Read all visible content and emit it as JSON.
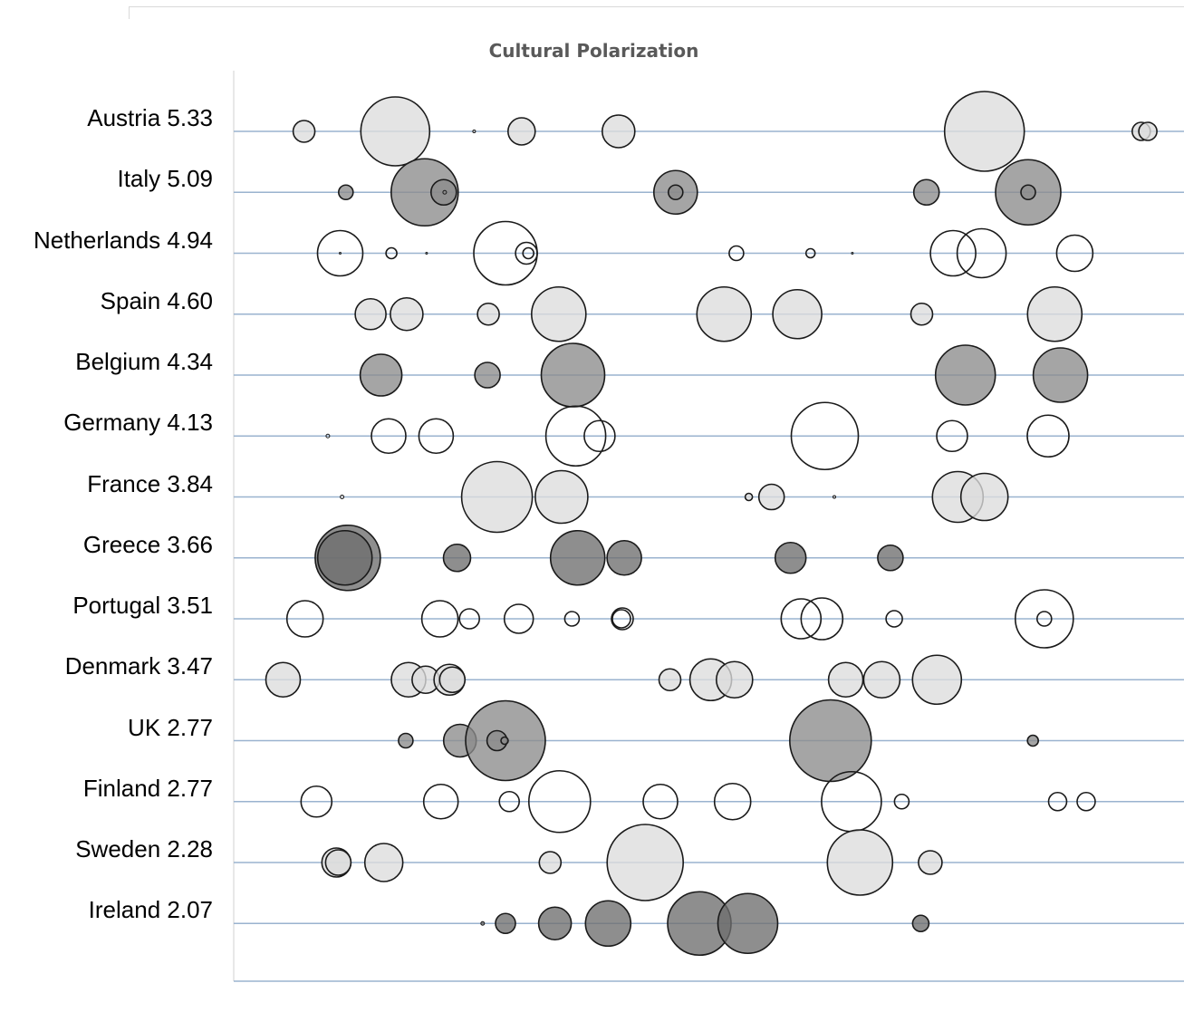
{
  "chart_data": {
    "type": "bubble-strip",
    "title": "Cultural Polarization",
    "xlabel": "",
    "ylabel": "",
    "grid": true,
    "legend": "none",
    "colors": {
      "light": "#dcdcdc",
      "medium": "#8c8c8c",
      "dark": "#6e6e6e",
      "none": "none",
      "axis": "#9ab3cf",
      "stroke": "#1a1a1a"
    },
    "rows": [
      {
        "country": "Austria",
        "score": "5.33",
        "label": "Austria 5.33",
        "fill": "light",
        "bubbles": [
          [
            0.074,
            12
          ],
          [
            0.17,
            38
          ],
          [
            0.253,
            1.5
          ],
          [
            0.303,
            15
          ],
          [
            0.405,
            18
          ],
          [
            0.79,
            44
          ],
          [
            0.955,
            10
          ],
          [
            0.962,
            10
          ]
        ]
      },
      {
        "country": "Italy",
        "score": "5.09",
        "label": "Italy 5.09",
        "fill": "medium",
        "bubbles": [
          [
            0.118,
            8
          ],
          [
            0.201,
            37
          ],
          [
            0.221,
            14
          ],
          [
            0.222,
            2
          ],
          [
            0.465,
            24
          ],
          [
            0.465,
            8
          ],
          [
            0.729,
            14
          ],
          [
            0.836,
            36
          ],
          [
            0.836,
            8
          ]
        ]
      },
      {
        "country": "Netherlands",
        "score": "4.94",
        "label": "Netherlands 4.94",
        "fill": "none",
        "bubbles": [
          [
            0.112,
            25
          ],
          [
            0.112,
            1
          ],
          [
            0.166,
            6
          ],
          [
            0.203,
            1
          ],
          [
            0.286,
            35
          ],
          [
            0.308,
            12
          ],
          [
            0.31,
            6
          ],
          [
            0.529,
            8
          ],
          [
            0.607,
            5
          ],
          [
            0.651,
            1
          ],
          [
            0.757,
            25
          ],
          [
            0.787,
            27
          ],
          [
            0.885,
            20
          ]
        ]
      },
      {
        "country": "Spain",
        "score": "4.60",
        "label": "Spain 4.60",
        "fill": "light",
        "bubbles": [
          [
            0.144,
            17
          ],
          [
            0.182,
            18
          ],
          [
            0.268,
            12
          ],
          [
            0.342,
            30
          ],
          [
            0.516,
            30
          ],
          [
            0.593,
            27
          ],
          [
            0.724,
            12
          ],
          [
            0.864,
            30
          ]
        ]
      },
      {
        "country": "Belgium",
        "score": "4.34",
        "label": "Belgium 4.34",
        "fill": "medium",
        "bubbles": [
          [
            0.155,
            23
          ],
          [
            0.267,
            14
          ],
          [
            0.357,
            35
          ],
          [
            0.77,
            33
          ],
          [
            0.87,
            30
          ]
        ]
      },
      {
        "country": "Germany",
        "score": "4.13",
        "label": "Germany 4.13",
        "fill": "none",
        "bubbles": [
          [
            0.099,
            2
          ],
          [
            0.163,
            19
          ],
          [
            0.213,
            19
          ],
          [
            0.36,
            33
          ],
          [
            0.385,
            17
          ],
          [
            0.622,
            37
          ],
          [
            0.756,
            17
          ],
          [
            0.857,
            23
          ]
        ]
      },
      {
        "country": "France",
        "score": "3.84",
        "label": "France 3.84",
        "fill": "light",
        "bubbles": [
          [
            0.114,
            2
          ],
          [
            0.277,
            39
          ],
          [
            0.345,
            29
          ],
          [
            0.542,
            4
          ],
          [
            0.566,
            14
          ],
          [
            0.632,
            1.5
          ],
          [
            0.762,
            28
          ],
          [
            0.79,
            26
          ]
        ]
      },
      {
        "country": "Greece",
        "score": "3.66",
        "label": "Greece 3.66",
        "fill": "dark",
        "bubbles": [
          [
            0.12,
            36
          ],
          [
            0.117,
            30
          ],
          [
            0.235,
            15
          ],
          [
            0.362,
            30
          ],
          [
            0.411,
            19
          ],
          [
            0.586,
            17
          ],
          [
            0.691,
            14
          ]
        ]
      },
      {
        "country": "Portugal",
        "score": "3.51",
        "label": "Portugal 3.51",
        "fill": "none",
        "bubbles": [
          [
            0.075,
            20
          ],
          [
            0.217,
            20
          ],
          [
            0.248,
            11
          ],
          [
            0.3,
            16
          ],
          [
            0.356,
            8
          ],
          [
            0.409,
            12
          ],
          [
            0.408,
            10
          ],
          [
            0.597,
            22
          ],
          [
            0.619,
            23
          ],
          [
            0.695,
            9
          ],
          [
            0.853,
            32
          ],
          [
            0.853,
            8
          ]
        ]
      },
      {
        "country": "Denmark",
        "score": "3.47",
        "label": "Denmark 3.47",
        "fill": "light",
        "bubbles": [
          [
            0.052,
            19
          ],
          [
            0.184,
            19
          ],
          [
            0.202,
            15
          ],
          [
            0.227,
            17
          ],
          [
            0.23,
            14
          ],
          [
            0.459,
            12
          ],
          [
            0.502,
            23
          ],
          [
            0.527,
            20
          ],
          [
            0.644,
            19
          ],
          [
            0.682,
            20
          ],
          [
            0.74,
            27
          ]
        ]
      },
      {
        "country": "UK",
        "score": "2.77",
        "label": "UK 2.77",
        "fill": "medium",
        "bubbles": [
          [
            0.181,
            8
          ],
          [
            0.238,
            18
          ],
          [
            0.286,
            44
          ],
          [
            0.277,
            11
          ],
          [
            0.285,
            4
          ],
          [
            0.628,
            45
          ],
          [
            0.841,
            6
          ]
        ]
      },
      {
        "country": "Finland",
        "score": "2.77",
        "label": "Finland 2.77",
        "fill": "none",
        "bubbles": [
          [
            0.087,
            17
          ],
          [
            0.218,
            19
          ],
          [
            0.29,
            11
          ],
          [
            0.343,
            34
          ],
          [
            0.449,
            19
          ],
          [
            0.525,
            20
          ],
          [
            0.65,
            33
          ],
          [
            0.703,
            8
          ],
          [
            0.867,
            10
          ],
          [
            0.897,
            10
          ]
        ]
      },
      {
        "country": "Sweden",
        "score": "2.28",
        "label": "Sweden 2.28",
        "fill": "light",
        "bubbles": [
          [
            0.108,
            16
          ],
          [
            0.11,
            14
          ],
          [
            0.158,
            21
          ],
          [
            0.333,
            12
          ],
          [
            0.433,
            42
          ],
          [
            0.659,
            36
          ],
          [
            0.733,
            13
          ]
        ]
      },
      {
        "country": "Ireland",
        "score": "2.07",
        "label": "Ireland 2.07",
        "fill": "dark",
        "bubbles": [
          [
            0.262,
            2
          ],
          [
            0.286,
            11
          ],
          [
            0.338,
            18
          ],
          [
            0.394,
            25
          ],
          [
            0.49,
            35
          ],
          [
            0.541,
            33
          ],
          [
            0.723,
            9
          ]
        ]
      }
    ]
  }
}
